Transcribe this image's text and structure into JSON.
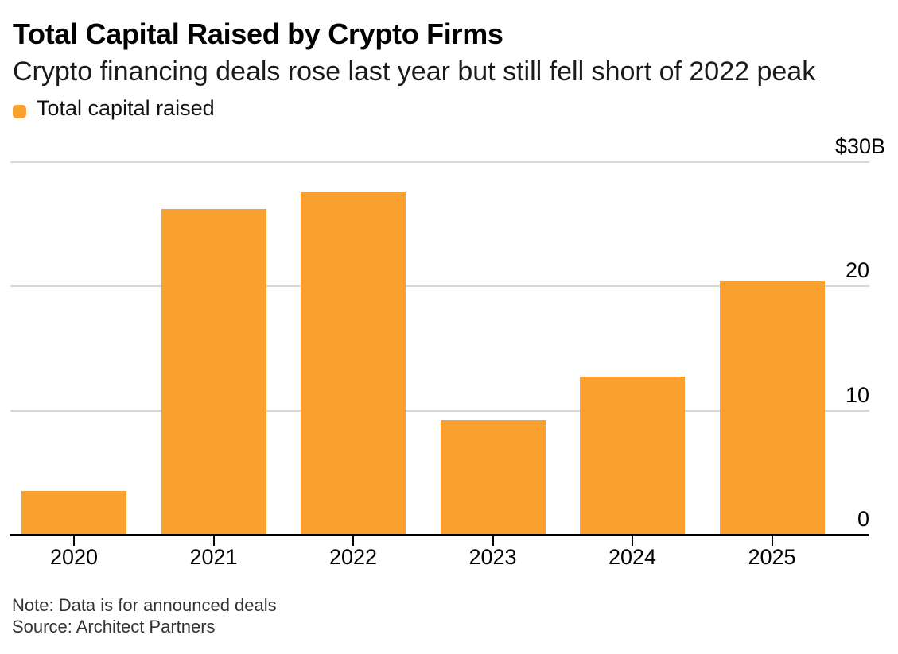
{
  "chart_data": {
    "type": "bar",
    "title": "Total Capital Raised by Crypto Firms",
    "subtitle": "Crypto financing deals rose last year but still fell short of 2022 peak",
    "legend": [
      {
        "label": "Total capital raised",
        "color": "#FAA02F"
      }
    ],
    "legend_position": "top-left",
    "categories": [
      "2020",
      "2021",
      "2022",
      "2023",
      "2024",
      "2025"
    ],
    "values": [
      3.5,
      26.2,
      27.6,
      9.2,
      12.7,
      20.4
    ],
    "unit": "billions of USD",
    "bar_color": "#FAA02F",
    "ylim": [
      0,
      30
    ],
    "yticks": [
      {
        "value": 30,
        "label": "$30B"
      },
      {
        "value": 20,
        "label": "20"
      },
      {
        "value": 10,
        "label": "10"
      },
      {
        "value": 0,
        "label": "0"
      }
    ],
    "grid": "horizontal",
    "gridline_color": "#D8D8D8",
    "axis_color": "#000000",
    "note": "Note: Data is for announced deals",
    "source": "Source: Architect Partners"
  }
}
